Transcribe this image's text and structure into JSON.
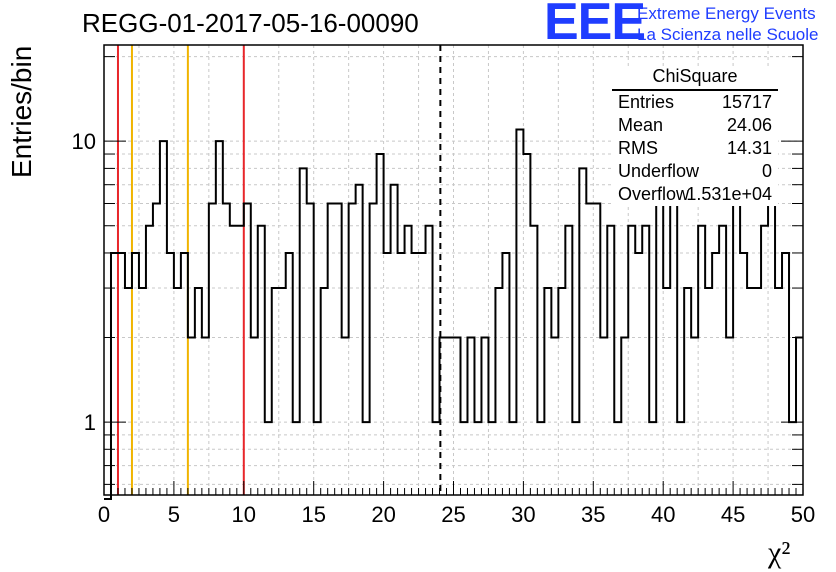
{
  "header": {
    "run_title": "REGG-01-2017-05-16-00090",
    "logo_text": "EEE",
    "logo_line1": "Extreme Energy Events",
    "logo_line2": "La Scienza nelle Scuole"
  },
  "stats": {
    "title": "ChiSquare",
    "rows": [
      {
        "label": "Entries",
        "value": "15717"
      },
      {
        "label": "Mean",
        "value": "24.06"
      },
      {
        "label": "RMS",
        "value": "14.31"
      },
      {
        "label": "Underflow",
        "value": "0"
      },
      {
        "label": "Overflow",
        "value": "1.531e+04"
      }
    ]
  },
  "colors": {
    "histogram": "#000000",
    "red_marker": "#e8262a",
    "yellow_marker": "#f0b400",
    "grid": "#c8c8c8"
  },
  "chart_data": {
    "type": "histogram",
    "title": "REGG-01-2017-05-16-00090",
    "xlabel": "χ²",
    "ylabel": "Entries/bin",
    "xlim": [
      0,
      50
    ],
    "ylim": [
      0.55,
      22
    ],
    "yscale": "log",
    "bin_width": 0.5,
    "x_ticks": [
      0,
      5,
      10,
      15,
      20,
      25,
      30,
      35,
      40,
      45,
      50
    ],
    "y_ticks": [
      1,
      10
    ],
    "grid": true,
    "counts": [
      0,
      4,
      4,
      3,
      4,
      3,
      5,
      6,
      10,
      4,
      3,
      4,
      2,
      3,
      2,
      6,
      10,
      6,
      5,
      5,
      6,
      2,
      5,
      1,
      3,
      3,
      4,
      1,
      8,
      6,
      1,
      3,
      6,
      6,
      2,
      6,
      7,
      1,
      6,
      9,
      4,
      7,
      4,
      5,
      4,
      4,
      5,
      1,
      2,
      2,
      2,
      1,
      2,
      1,
      2,
      1,
      3,
      4,
      1,
      11,
      9,
      5,
      1,
      3,
      2,
      3,
      5,
      1,
      8,
      6,
      6,
      2,
      5,
      1,
      2,
      5,
      4,
      5,
      1,
      8,
      3,
      7,
      1,
      3,
      2,
      5,
      3,
      4,
      5,
      2,
      6,
      4,
      3,
      3,
      5,
      6,
      3,
      4,
      1,
      2
    ],
    "vertical_markers": [
      {
        "x": 1,
        "color": "red",
        "style": "solid"
      },
      {
        "x": 2,
        "color": "yellow",
        "style": "solid"
      },
      {
        "x": 6,
        "color": "yellow",
        "style": "solid"
      },
      {
        "x": 10,
        "color": "red",
        "style": "solid"
      },
      {
        "x": 24.06,
        "color": "black",
        "style": "dashed"
      }
    ]
  }
}
